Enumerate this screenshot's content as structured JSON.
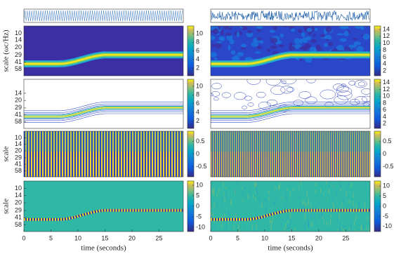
{
  "chart_data": [
    {
      "type": "heatmap",
      "ylabel": "scale (ωc/Hz)",
      "yscale": "log",
      "ylim": [
        7,
        80
      ],
      "yticks": [
        10,
        14,
        20,
        29,
        41,
        58
      ],
      "colorbar": {
        "lim": [
          0.2,
          11.8
        ],
        "ticks": [
          2,
          4,
          6,
          8,
          10
        ]
      }
    },
    {
      "type": "heatmap",
      "colorbar": {
        "lim": [
          0.6,
          15
        ],
        "ticks": [
          2,
          4,
          6,
          8,
          10,
          12,
          14
        ]
      }
    },
    {
      "type": "contour",
      "yscale": "log",
      "ylim": [
        7,
        80
      ],
      "yticks": [
        14,
        20,
        29,
        41,
        58
      ],
      "colorbar": {
        "lim": [
          0.3,
          11.6
        ],
        "ticks": [
          2,
          4,
          6,
          8,
          10
        ]
      }
    },
    {
      "type": "contour",
      "colorbar": {
        "lim": [
          0.6,
          15
        ],
        "ticks": [
          2,
          4,
          6,
          8,
          10,
          12,
          14
        ]
      }
    },
    {
      "type": "stripes",
      "ylabel": "scale",
      "yscale": "log",
      "ylim": [
        7,
        80
      ],
      "yticks": [
        10,
        14,
        20,
        29,
        41,
        58
      ],
      "colorbar": {
        "lim": [
          -0.9,
          0.9
        ],
        "ticks": [
          0.5,
          0,
          -0.5
        ]
      }
    },
    {
      "type": "stripes",
      "colorbar": {
        "lim": [
          -0.9,
          0.9
        ],
        "ticks": [
          0.5,
          0,
          -0.5
        ]
      }
    },
    {
      "type": "ridge",
      "ylabel": "scale",
      "yscale": "log",
      "ylim": [
        7,
        80
      ],
      "yticks": [
        10,
        14,
        20,
        29,
        41,
        58
      ],
      "xlabel": "time (seconds)",
      "xlim": [
        0,
        29.5
      ],
      "xticks": [
        0,
        5,
        10,
        15,
        20,
        25
      ],
      "colorbar": {
        "lim": [
          -12,
          12
        ],
        "ticks": [
          10,
          5,
          0,
          -5,
          -10
        ]
      }
    },
    {
      "type": "ridge",
      "xlabel": "time (seconds)",
      "xlim": [
        0,
        29.5
      ],
      "xticks": [
        0,
        5,
        10,
        15,
        20,
        25
      ],
      "colorbar": {
        "lim": [
          -12.5,
          12.5
        ],
        "ticks": [
          10,
          5,
          0,
          -5,
          -10
        ]
      }
    }
  ]
}
